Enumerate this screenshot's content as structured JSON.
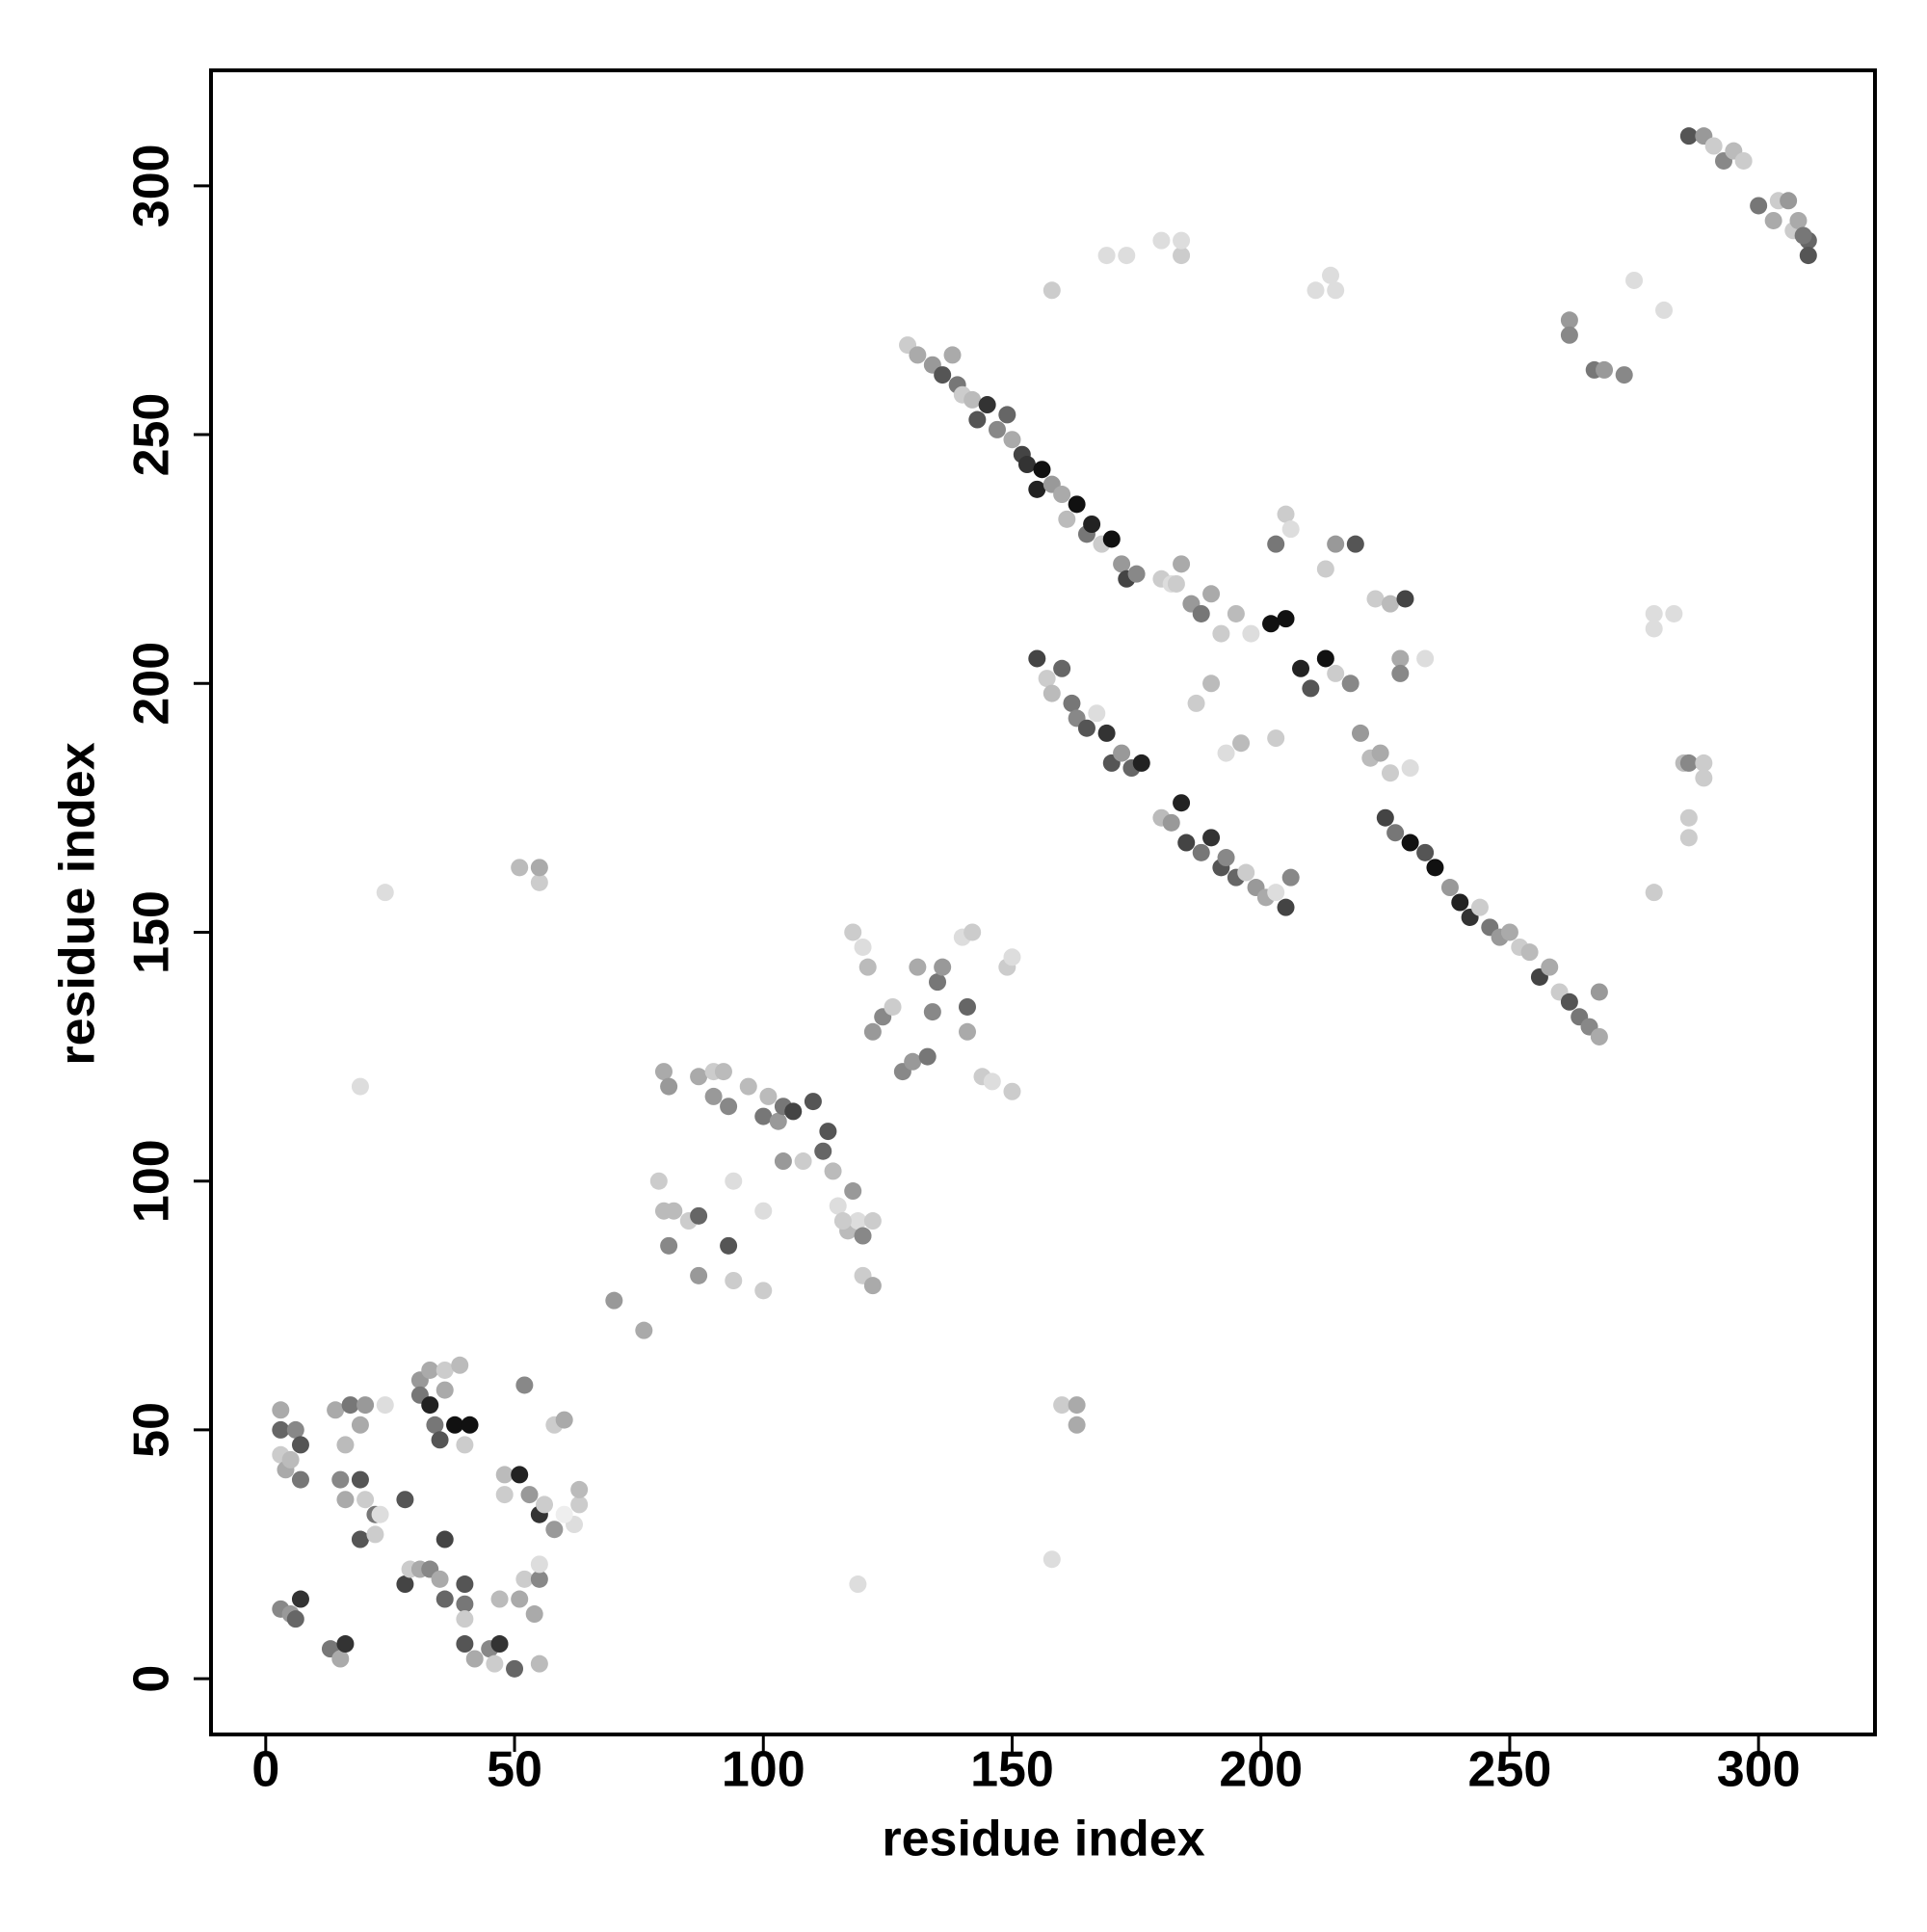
{
  "chart_data": {
    "type": "scatter",
    "x_label": "residue index",
    "y_label": "residue index",
    "xlim": [
      -11.0,
      323.4
    ],
    "ylim": [
      -11.2,
      323.2
    ],
    "xticks": [
      0,
      50,
      100,
      150,
      200,
      250,
      300
    ],
    "yticks": [
      0,
      50,
      100,
      150,
      200,
      250,
      300
    ],
    "x": [
      3,
      3,
      4,
      6,
      7,
      7,
      3,
      5,
      3,
      5,
      7,
      6,
      13,
      15,
      16,
      14,
      16,
      17,
      19,
      20,
      15,
      16,
      19,
      20,
      22,
      19,
      22,
      23,
      24,
      28,
      28,
      29,
      31,
      31,
      31,
      33,
      33,
      34,
      35,
      36,
      36,
      38,
      39,
      40,
      41,
      33,
      35,
      36,
      36,
      40,
      40,
      40,
      40,
      42,
      45,
      46,
      47,
      47,
      48,
      48,
      50,
      51,
      52,
      53,
      52,
      54,
      55,
      55,
      55,
      56,
      58,
      58,
      60,
      62,
      63,
      63,
      60,
      55,
      51,
      70,
      76,
      79,
      80,
      80,
      81,
      81,
      82,
      85,
      87,
      87,
      87,
      90,
      90,
      92,
      93,
      93,
      94,
      94,
      97,
      100,
      100,
      100,
      101,
      103,
      104,
      106,
      110,
      104,
      108,
      112,
      113,
      114,
      115,
      117,
      118,
      119,
      120,
      120,
      122,
      122,
      116,
      118,
      120,
      121,
      122,
      124,
      126,
      128,
      130,
      131,
      133,
      134,
      135,
      136,
      140,
      142,
      141,
      144,
      146,
      149,
      150,
      150,
      141,
      24,
      19,
      51,
      55,
      55,
      119,
      158,
      160,
      163,
      163,
      129,
      131,
      134,
      136,
      138,
      139,
      140,
      142,
      143,
      145,
      147,
      149,
      150,
      152,
      153,
      155,
      156,
      158,
      160,
      161,
      163,
      165,
      166,
      168,
      170,
      172,
      173,
      175,
      180,
      182,
      184,
      186,
      188,
      190,
      192,
      195,
      198,
      202,
      205,
      208,
      210,
      213,
      215,
      218,
      220,
      222,
      224,
      226,
      230,
      225,
      227,
      230,
      233,
      235,
      238,
      240,
      242,
      244,
      246,
      248,
      250,
      252,
      254,
      256,
      258,
      260,
      262,
      264,
      266,
      268,
      268,
      155,
      157,
      158,
      160,
      162,
      163,
      165,
      167,
      169,
      170,
      172,
      174,
      176,
      180,
      182,
      184,
      185,
      188,
      190,
      192,
      193,
      195,
      197,
      199,
      201,
      203,
      205,
      206,
      203,
      196,
      193,
      187,
      190,
      183,
      215,
      213,
      219,
      203,
      205,
      206,
      223,
      226,
      229,
      228,
      233,
      228,
      158,
      169,
      173,
      180,
      184,
      184,
      211,
      214,
      215,
      262,
      262,
      267,
      269,
      273,
      275,
      281,
      279,
      279,
      283,
      285,
      286,
      286,
      286,
      289,
      289,
      279,
      286,
      289,
      291,
      293,
      295,
      297,
      300,
      303,
      304,
      306,
      307,
      308,
      310,
      310,
      309
    ],
    "values": [
      50,
      45,
      42,
      50,
      47,
      40,
      54,
      44,
      14,
      13,
      16,
      12,
      6,
      4,
      7,
      54,
      47,
      55,
      51,
      55,
      40,
      36,
      40,
      36,
      33,
      28,
      29,
      33,
      55,
      36,
      19,
      22,
      22,
      60,
      57,
      62,
      55,
      51,
      48,
      62,
      58,
      51,
      63,
      47,
      51,
      22,
      20,
      28,
      16,
      19,
      15,
      12,
      7,
      4,
      6,
      3,
      7,
      16,
      37,
      41,
      2,
      41,
      59,
      37,
      20,
      13,
      20,
      23,
      33,
      35,
      30,
      51,
      52,
      31,
      35,
      38,
      33,
      3,
      16,
      76,
      70,
      100,
      94,
      122,
      119,
      87,
      94,
      92,
      81,
      93,
      121,
      122,
      117,
      122,
      87,
      115,
      80,
      100,
      119,
      113,
      94,
      78,
      117,
      112,
      115,
      114,
      116,
      104,
      104,
      106,
      110,
      102,
      95,
      90,
      98,
      92,
      81,
      89,
      79,
      92,
      92,
      150,
      147,
      143,
      130,
      133,
      135,
      122,
      124,
      143,
      125,
      134,
      140,
      143,
      149,
      150,
      135,
      121,
      120,
      143,
      118,
      145,
      130,
      158,
      119,
      163,
      160,
      163,
      19,
      24,
      55,
      51,
      55,
      268,
      266,
      264,
      262,
      266,
      260,
      258,
      257,
      253,
      256,
      251,
      254,
      249,
      246,
      244,
      239,
      243,
      240,
      238,
      233,
      236,
      230,
      232,
      228,
      229,
      224,
      221,
      222,
      221,
      220,
      224,
      216,
      214,
      218,
      210,
      214,
      210,
      212,
      213,
      203,
      199,
      205,
      202,
      200,
      190,
      185,
      186,
      182,
      183,
      173,
      170,
      168,
      166,
      163,
      159,
      156,
      153,
      155,
      151,
      149,
      150,
      147,
      146,
      141,
      143,
      138,
      136,
      133,
      131,
      129,
      138,
      205,
      201,
      198,
      203,
      196,
      193,
      191,
      194,
      190,
      184,
      186,
      183,
      184,
      173,
      172,
      176,
      168,
      166,
      169,
      163,
      165,
      161,
      162,
      159,
      157,
      158,
      155,
      161,
      189,
      188,
      186,
      196,
      200,
      220,
      228,
      223,
      228,
      228,
      234,
      231,
      217,
      216,
      217,
      205,
      205,
      202,
      279,
      286,
      286,
      289,
      286,
      289,
      279,
      282,
      279,
      273,
      270,
      263,
      263,
      262,
      281,
      275,
      214,
      211,
      214,
      184,
      184,
      173,
      169,
      184,
      181,
      158,
      310,
      310,
      308,
      305,
      307,
      305,
      296,
      293,
      297,
      297,
      291,
      293,
      289,
      286,
      290
    ],
    "colors": [
      "#666",
      "#ccc",
      "#aaa",
      "#888",
      "#555",
      "#777",
      "#aaa",
      "#bbb",
      "#888",
      "#999",
      "#333",
      "#666",
      "#777",
      "#aaa",
      "#333",
      "#aaa",
      "#bbb",
      "#777",
      "#aaa",
      "#999",
      "#888",
      "#aaa",
      "#555",
      "#ccc",
      "#777",
      "#555",
      "#ccc",
      "#ddd",
      "#ddd",
      "#555",
      "#444",
      "#ccc",
      "#aaa",
      "#999",
      "#777",
      "#aaa",
      "#222",
      "#777",
      "#555",
      "#ccc",
      "#aaa",
      "#111",
      "#bbb",
      "#ccc",
      "#111",
      "#888",
      "#aaa",
      "#444",
      "#666",
      "#555",
      "#777",
      "#ccc",
      "#555",
      "#aaa",
      "#888",
      "#ccc",
      "#333",
      "#bbb",
      "#ccc",
      "#bbb",
      "#666",
      "#222",
      "#888",
      "#999",
      "#ccc",
      "#aaa",
      "#888",
      "#ddd",
      "#333",
      "#ccc",
      "#999",
      "#ccc",
      "#aaa",
      "#ddd",
      "#ccc",
      "#bbb",
      "#eee",
      "#bbb",
      "#aaa",
      "#999",
      "#aaa",
      "#ccc",
      "#bbb",
      "#aaa",
      "#999",
      "#888",
      "#bbb",
      "#ccc",
      "#999",
      "#666",
      "#aaa",
      "#ccc",
      "#999",
      "#bbb",
      "#555",
      "#888",
      "#ccc",
      "#ddd",
      "#bbb",
      "#777",
      "#ddd",
      "#ccc",
      "#bbb",
      "#999",
      "#777",
      "#444",
      "#555",
      "#999",
      "#ccc",
      "#666",
      "#555",
      "#bbb",
      "#ddd",
      "#bbb",
      "#999",
      "#ddd",
      "#ccc",
      "#888",
      "#aaa",
      "#ccc",
      "#ccc",
      "#ccc",
      "#ddd",
      "#bbb",
      "#999",
      "#888",
      "#ccc",
      "#888",
      "#999",
      "#aaa",
      "#777",
      "#888",
      "#777",
      "#999",
      "#ddd",
      "#ccc",
      "#666",
      "#ccc",
      "#ddd",
      "#ccc",
      "#ccc",
      "#ddd",
      "#aaa",
      "#ddd",
      "#ddd",
      "#bbb",
      "#ccc",
      "#aaa",
      "#ddd",
      "#ddd",
      "#ccc",
      "#aaa",
      "#aaa",
      "#ccc",
      "#aaa",
      "#999",
      "#555",
      "#aaa",
      "#777",
      "#ccc",
      "#bbb",
      "#555",
      "#333",
      "#888",
      "#666",
      "#aaa",
      "#444",
      "#333",
      "#222",
      "#111",
      "#999",
      "#aaa",
      "#bbb",
      "#111",
      "#777",
      "#222",
      "#ccc",
      "#111",
      "#999",
      "#444",
      "#888",
      "#ccc",
      "#ddd",
      "#aaa",
      "#999",
      "#777",
      "#aaa",
      "#ccc",
      "#bbb",
      "#ddd",
      "#111",
      "#111",
      "#222",
      "#555",
      "#111",
      "#ccc",
      "#888",
      "#999",
      "#bbb",
      "#aaa",
      "#ccc",
      "#ddd",
      "#444",
      "#777",
      "#111",
      "#555",
      "#111",
      "#999",
      "#222",
      "#333",
      "#ccc",
      "#777",
      "#999",
      "#aaa",
      "#ccc",
      "#bbb",
      "#444",
      "#aaa",
      "#ccc",
      "#555",
      "#777",
      "#888",
      "#aaa",
      "#999",
      "#444",
      "#ccc",
      "#bbb",
      "#666",
      "#777",
      "#888",
      "#555",
      "#ddd",
      "#333",
      "#555",
      "#999",
      "#666",
      "#222",
      "#bbb",
      "#999",
      "#222",
      "#444",
      "#777",
      "#333",
      "#555",
      "#888",
      "#666",
      "#ccc",
      "#999",
      "#aaa",
      "#ddd",
      "#444",
      "#888",
      "#ccc",
      "#bbb",
      "#ddd",
      "#ccc",
      "#bbb",
      "#ccc",
      "#999",
      "#ccc",
      "#555",
      "#777",
      "#ccc",
      "#ddd",
      "#ccc",
      "#bbb",
      "#444",
      "#aaa",
      "#ddd",
      "#888",
      "#ccc",
      "#ddd",
      "#ddd",
      "#ddd",
      "#ccc",
      "#ddd",
      "#ddd",
      "#ddd",
      "#ddd",
      "#999",
      "#888",
      "#777",
      "#999",
      "#888",
      "#ddd",
      "#ddd",
      "#ddd",
      "#ddd",
      "#ddd",
      "#bbb",
      "#888",
      "#ccc",
      "#ccc",
      "#ccc",
      "#ccc",
      "#ccc",
      "#555",
      "#999",
      "#ccc",
      "#888",
      "#bbb",
      "#ccc",
      "#777",
      "#aaa",
      "#ccc",
      "#999",
      "#ccc",
      "#aaa",
      "#666",
      "#555",
      "#777"
    ]
  }
}
